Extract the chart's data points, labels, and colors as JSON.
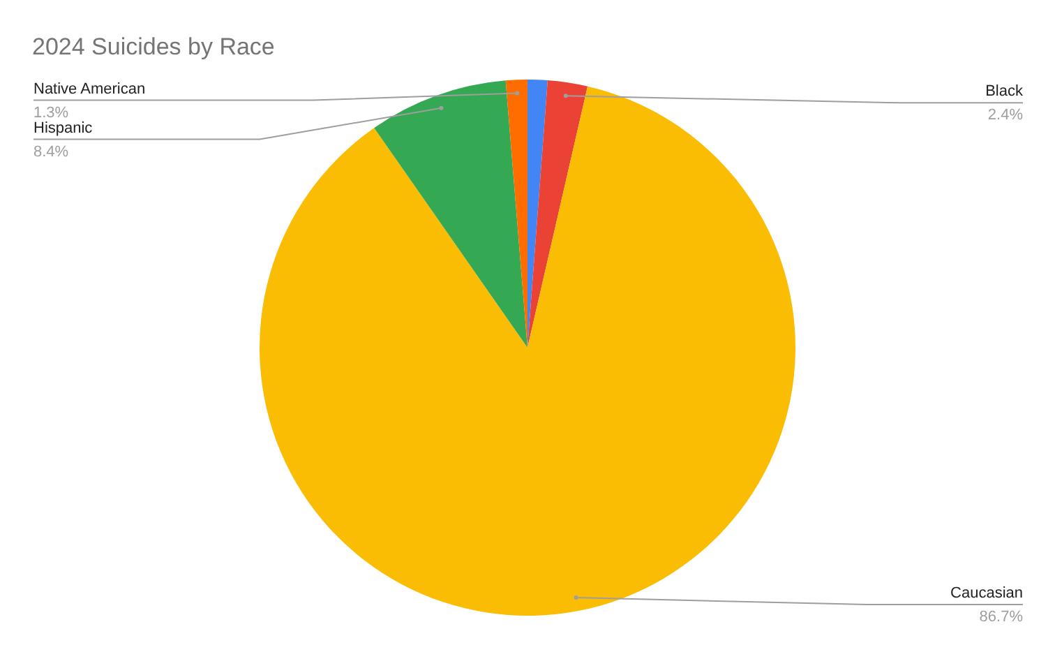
{
  "chart_data": {
    "type": "pie",
    "title": "2024 Suicides by Race",
    "categories": [
      null,
      "Black",
      "Caucasian",
      "Hispanic",
      "Native American"
    ],
    "values": [
      1.2,
      2.4,
      86.7,
      8.4,
      1.3
    ],
    "value_labels": [
      null,
      "2.4%",
      "86.7%",
      "8.4%",
      "1.3%"
    ],
    "colors": [
      "#4285f4",
      "#ea4335",
      "#fbbc04",
      "#34a853",
      "#ff6d01"
    ],
    "legend": false
  }
}
